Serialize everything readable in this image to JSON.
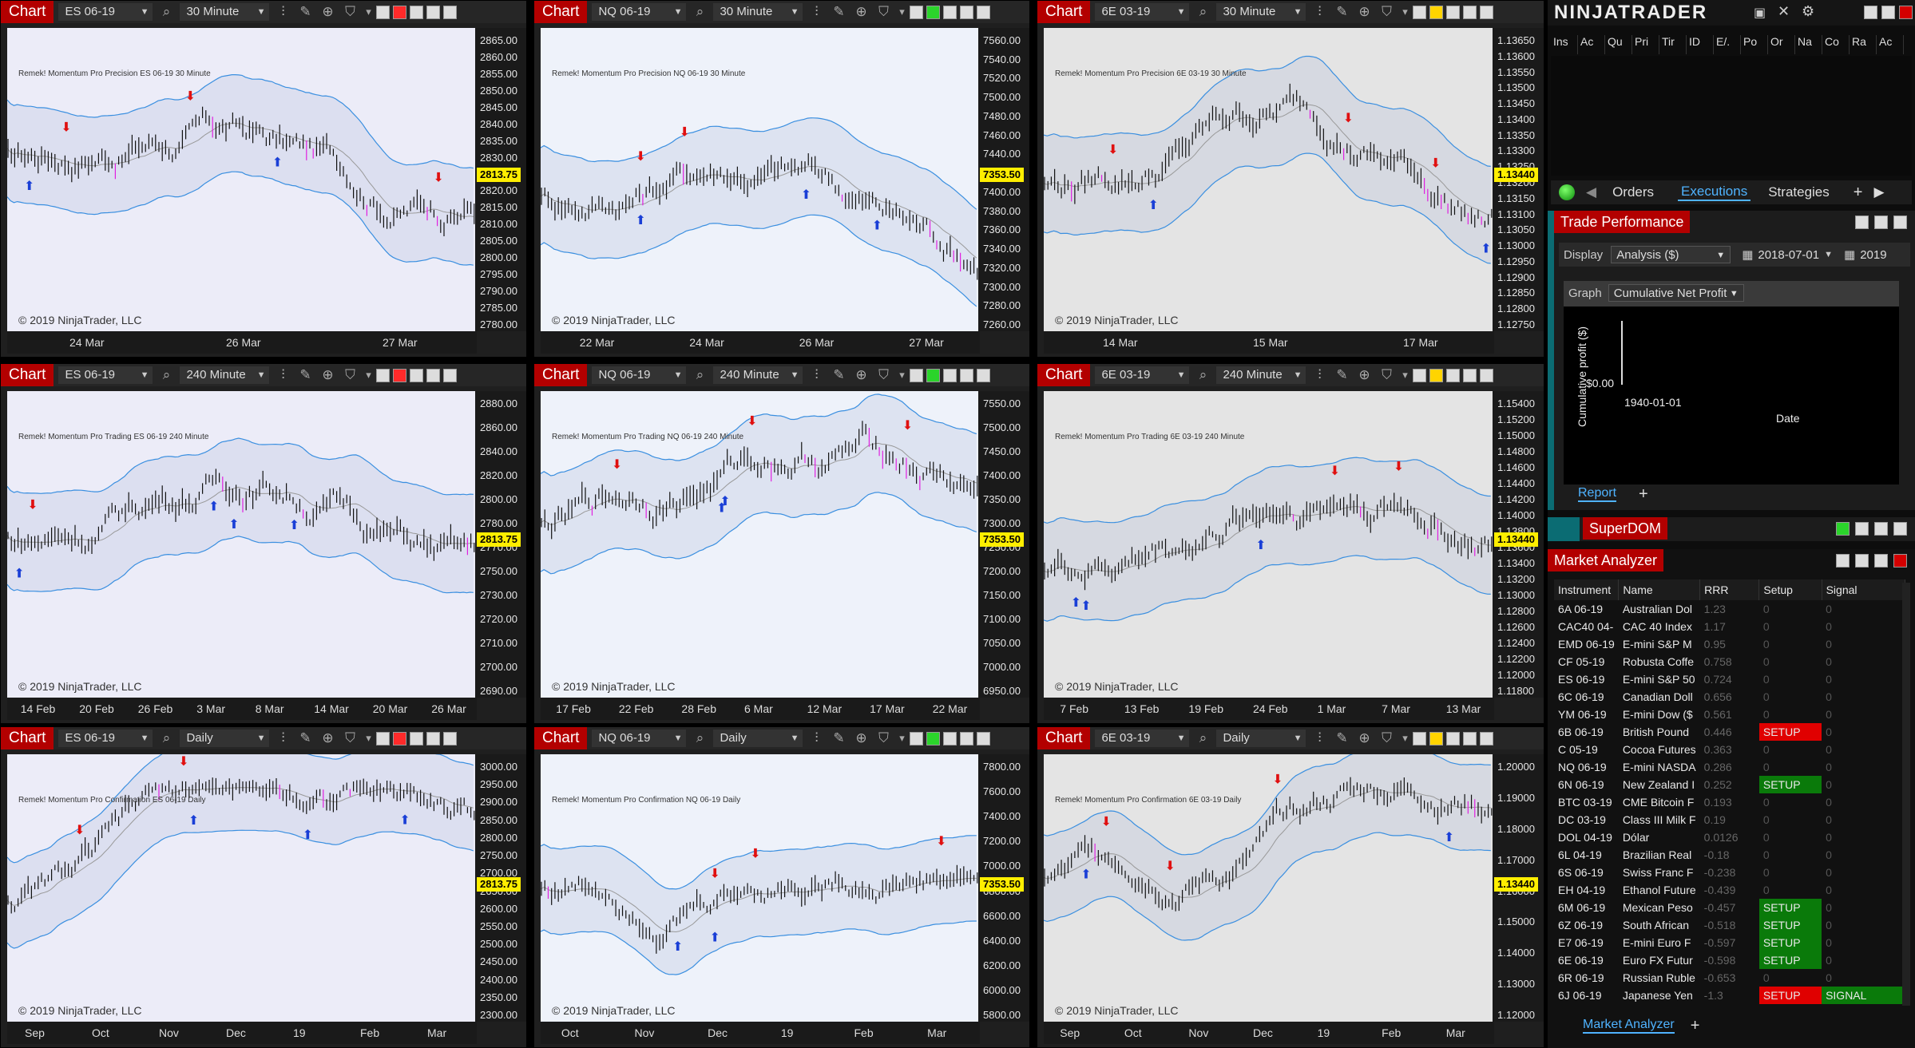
{
  "charts": [
    {
      "tag": "Chart",
      "instrument": "ES 06-19",
      "interval": "30 Minute",
      "indicator": "Remek!  Momentum Pro Precision  ES 06-19  30 Minute",
      "copyright": "© 2019 NinjaTrader, LLC",
      "last": "2813.75",
      "yticks": [
        "2865.00",
        "2860.00",
        "2855.00",
        "2850.00",
        "2845.00",
        "2840.00",
        "2835.00",
        "2830.00",
        "2825.00",
        "2820.00",
        "2815.00",
        "2810.00",
        "2805.00",
        "2800.00",
        "2795.00",
        "2790.00",
        "2785.00",
        "2780.00"
      ],
      "xticks": [
        "24 Mar",
        "26 Mar",
        "27 Mar"
      ],
      "color": "#ff2a2a"
    },
    {
      "tag": "Chart",
      "instrument": "NQ 06-19",
      "interval": "30 Minute",
      "indicator": "Remek!  Momentum Pro Precision  NQ 06-19  30 Minute",
      "copyright": "© 2019 NinjaTrader, LLC",
      "last": "7353.50",
      "yticks": [
        "7560.00",
        "7540.00",
        "7520.00",
        "7500.00",
        "7480.00",
        "7460.00",
        "7440.00",
        "7420.00",
        "7400.00",
        "7380.00",
        "7360.00",
        "7340.00",
        "7320.00",
        "7300.00",
        "7280.00",
        "7260.00"
      ],
      "xticks": [
        "22 Mar",
        "24 Mar",
        "26 Mar",
        "27 Mar"
      ],
      "color": "#2bd42b"
    },
    {
      "tag": "Chart",
      "instrument": "6E 03-19",
      "interval": "30 Minute",
      "indicator": "Remek!  Momentum Pro Precision  6E 03-19  30 Minute",
      "copyright": "© 2019 NinjaTrader, LLC",
      "last": "1.13440",
      "yticks": [
        "1.13650",
        "1.13600",
        "1.13550",
        "1.13500",
        "1.13450",
        "1.13400",
        "1.13350",
        "1.13300",
        "1.13250",
        "1.13200",
        "1.13150",
        "1.13100",
        "1.13050",
        "1.13000",
        "1.12950",
        "1.12900",
        "1.12850",
        "1.12800",
        "1.12750"
      ],
      "xticks": [
        "14 Mar",
        "15 Mar",
        "17 Mar"
      ],
      "color": "#ffd400"
    },
    {
      "tag": "Chart",
      "instrument": "ES 06-19",
      "interval": "240 Minute",
      "indicator": "Remek!  Momentum Pro Trading  ES 06-19  240 Minute",
      "copyright": "© 2019 NinjaTrader, LLC",
      "last": "2813.75",
      "yticks": [
        "2880.00",
        "2860.00",
        "2840.00",
        "2820.00",
        "2800.00",
        "2780.00",
        "2770.00",
        "2750.00",
        "2730.00",
        "2720.00",
        "2710.00",
        "2700.00",
        "2690.00"
      ],
      "xticks": [
        "14 Feb",
        "20 Feb",
        "26 Feb",
        "3 Mar",
        "8 Mar",
        "14 Mar",
        "20 Mar",
        "26 Mar"
      ],
      "color": "#ff2a2a"
    },
    {
      "tag": "Chart",
      "instrument": "NQ 06-19",
      "interval": "240 Minute",
      "indicator": "Remek!  Momentum Pro Trading  NQ 06-19  240 Minute",
      "copyright": "© 2019 NinjaTrader, LLC",
      "last": "7353.50",
      "yticks": [
        "7550.00",
        "7500.00",
        "7450.00",
        "7400.00",
        "7350.00",
        "7300.00",
        "7250.00",
        "7200.00",
        "7150.00",
        "7100.00",
        "7050.00",
        "7000.00",
        "6950.00"
      ],
      "xticks": [
        "17 Feb",
        "22 Feb",
        "28 Feb",
        "6 Mar",
        "12 Mar",
        "17 Mar",
        "22 Mar"
      ],
      "color": "#2bd42b"
    },
    {
      "tag": "Chart",
      "instrument": "6E 03-19",
      "interval": "240 Minute",
      "indicator": "Remek!  Momentum Pro Trading  6E 03-19  240 Minute",
      "copyright": "© 2019 NinjaTrader, LLC",
      "last": "1.13440",
      "yticks": [
        "1.15400",
        "1.15200",
        "1.15000",
        "1.14800",
        "1.14600",
        "1.14400",
        "1.14200",
        "1.14000",
        "1.13800",
        "1.13600",
        "1.13400",
        "1.13200",
        "1.13000",
        "1.12800",
        "1.12600",
        "1.12400",
        "1.12200",
        "1.12000",
        "1.11800"
      ],
      "xticks": [
        "7 Feb",
        "13 Feb",
        "19 Feb",
        "24 Feb",
        "1 Mar",
        "7 Mar",
        "13 Mar"
      ],
      "color": "#ffd400"
    },
    {
      "tag": "Chart",
      "instrument": "ES 06-19",
      "interval": "Daily",
      "indicator": "Remek!  Momentum Pro Confirmation  ES 06-19  Daily",
      "copyright": "© 2019 NinjaTrader, LLC",
      "last": "2813.75",
      "yticks": [
        "3000.00",
        "2950.00",
        "2900.00",
        "2850.00",
        "2800.00",
        "2750.00",
        "2700.00",
        "2650.00",
        "2600.00",
        "2550.00",
        "2500.00",
        "2450.00",
        "2400.00",
        "2350.00",
        "2300.00"
      ],
      "xticks": [
        "Sep",
        "Oct",
        "Nov",
        "Dec",
        "19",
        "Feb",
        "Mar"
      ],
      "color": "#ff2a2a"
    },
    {
      "tag": "Chart",
      "instrument": "NQ 06-19",
      "interval": "Daily",
      "indicator": "Remek!  Momentum Pro Confirmation  NQ 06-19  Daily",
      "copyright": "© 2019 NinjaTrader, LLC",
      "last": "7353.50",
      "yticks": [
        "7800.00",
        "7600.00",
        "7400.00",
        "7200.00",
        "7000.00",
        "6800.00",
        "6600.00",
        "6400.00",
        "6200.00",
        "6000.00",
        "5800.00"
      ],
      "xticks": [
        "Oct",
        "Nov",
        "Dec",
        "19",
        "Feb",
        "Mar"
      ],
      "color": "#2bd42b"
    },
    {
      "tag": "Chart",
      "instrument": "6E 03-19",
      "interval": "Daily",
      "indicator": "Remek!  Momentum Pro Confirmation  6E 03-19  Daily",
      "copyright": "© 2019 NinjaTrader, LLC",
      "last": "1.13440",
      "yticks": [
        "1.20000",
        "1.19000",
        "1.18000",
        "1.17000",
        "1.16000",
        "1.15000",
        "1.14000",
        "1.13000",
        "1.12000"
      ],
      "xticks": [
        "Sep",
        "Oct",
        "Nov",
        "Dec",
        "19",
        "Feb",
        "Mar"
      ],
      "color": "#ffd400"
    }
  ],
  "control": {
    "brand": "NINJATRADER",
    "columns": [
      "Ins",
      "Ac",
      "Qu",
      "Pri",
      "Tir",
      "ID",
      "E/.",
      "Po",
      "Or",
      "Na",
      "Co",
      "Ra",
      "Ac"
    ],
    "tabs": [
      "Orders",
      "Executions",
      "Strategies"
    ],
    "active_tab": "Executions"
  },
  "trade_performance": {
    "title": "Trade Performance",
    "display_label": "Display",
    "display_value": "Analysis ($)",
    "date1": "2018-07-01",
    "date2": "2019",
    "graph_label": "Graph",
    "graph_value": "Cumulative Net Profit",
    "ylabel": "Cumulative profit ($)",
    "y0": "$0.00",
    "x0": "1940-01-01",
    "xlabel": "Date",
    "report_tab": "Report"
  },
  "superdom": {
    "title": "SuperDOM"
  },
  "market_analyzer": {
    "title": "Market Analyzer",
    "tab": "Market Analyzer",
    "headers": [
      "Instrument",
      "Name",
      "RRR",
      "Setup",
      "Signal"
    ],
    "rows": [
      [
        "6A 06-19",
        "Australian Dol",
        "1.23",
        "0",
        "0"
      ],
      [
        "CAC40 04-",
        "CAC 40 Index",
        "1.17",
        "0",
        "0"
      ],
      [
        "EMD 06-19",
        "E-mini S&P M",
        "0.95",
        "0",
        "0"
      ],
      [
        "CF 05-19",
        "Robusta Coffe",
        "0.758",
        "0",
        "0"
      ],
      [
        "ES 06-19",
        "E-mini S&P 50",
        "0.724",
        "0",
        "0"
      ],
      [
        "6C 06-19",
        "Canadian Doll",
        "0.656",
        "0",
        "0"
      ],
      [
        "YM 06-19",
        "E-mini Dow ($",
        "0.561",
        "0",
        "0"
      ],
      [
        "6B 06-19",
        "British Pound",
        "0.446",
        "SETUP",
        "0"
      ],
      [
        "C 05-19",
        "Cocoa Futures",
        "0.363",
        "0",
        "0"
      ],
      [
        "NQ 06-19",
        "E-mini NASDA",
        "0.286",
        "0",
        "0"
      ],
      [
        "6N 06-19",
        "New Zealand I",
        "0.252",
        "SETUP",
        "0"
      ],
      [
        "BTC 03-19",
        "CME Bitcoin F",
        "0.193",
        "0",
        "0"
      ],
      [
        "DC 03-19",
        "Class III Milk F",
        "0.19",
        "0",
        "0"
      ],
      [
        "DOL 04-19",
        "Dólar",
        "0.0126",
        "0",
        "0"
      ],
      [
        "6L 04-19",
        "Brazilian Real",
        "-0.18",
        "0",
        "0"
      ],
      [
        "6S 06-19",
        "Swiss Franc F",
        "-0.238",
        "0",
        "0"
      ],
      [
        "EH 04-19",
        "Ethanol Future",
        "-0.439",
        "0",
        "0"
      ],
      [
        "6M 06-19",
        "Mexican Peso",
        "-0.457",
        "SETUP",
        "0"
      ],
      [
        "6Z 06-19",
        "South African",
        "-0.518",
        "SETUP",
        "0"
      ],
      [
        "E7 06-19",
        "E-mini Euro F",
        "-0.597",
        "SETUP",
        "0"
      ],
      [
        "6E 06-19",
        "Euro FX Futur",
        "-0.598",
        "SETUP",
        "0"
      ],
      [
        "6R 06-19",
        "Russian Ruble",
        "-0.653",
        "0",
        "0"
      ],
      [
        "6J 06-19",
        "Japanese Yen",
        "-1.3",
        "SETUP",
        "SIGNAL"
      ]
    ],
    "setup_colors": {
      "6B 06-19": "red",
      "6J 06-19": "red",
      "6N 06-19": "green",
      "6M 06-19": "green",
      "6Z 06-19": "green",
      "E7 06-19": "green",
      "6E 06-19": "green"
    }
  }
}
